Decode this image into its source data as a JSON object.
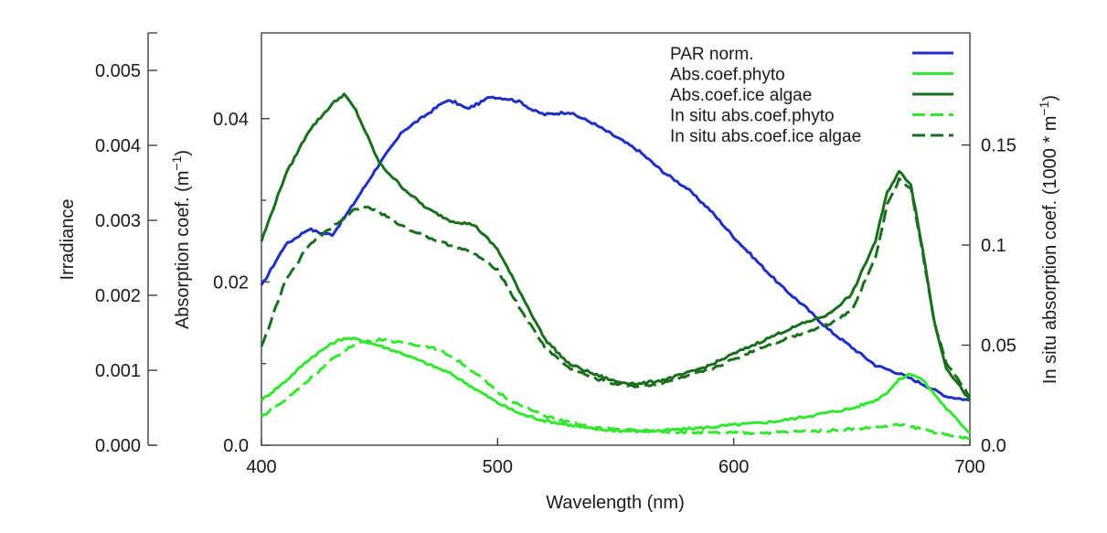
{
  "chart_data": {
    "type": "line",
    "xlabel": "Wavelength (nm)",
    "x_ticks": [
      "400",
      "500",
      "600",
      "700"
    ],
    "xlim": [
      400,
      700
    ],
    "axes": {
      "irradiance": {
        "label": "Irradiance",
        "ylim": [
          0,
          0.0055
        ],
        "ticks": [
          "0.000",
          "0.001",
          "0.002",
          "0.003",
          "0.004",
          "0.005"
        ]
      },
      "absorption": {
        "label_main": "Absorption coef. (m",
        "label_sup": "−1",
        "label_end": ")",
        "ylim": [
          0,
          0.0505
        ],
        "ticks": [
          "0.0",
          "0.02",
          "0.04"
        ]
      },
      "in_situ": {
        "label_main": "In situ absorption coef. (1000 * m",
        "label_sup": "−1",
        "label_end": ")",
        "ylim": [
          0,
          0.206
        ],
        "ticks": [
          "0.0",
          "0.05",
          "0.1",
          "0.15"
        ]
      }
    },
    "grid": false,
    "legend_position": "top-right",
    "series": [
      {
        "name": "PAR norm.",
        "axis": "absorption",
        "color": "#1f2fbf",
        "dash": false,
        "x": [
          400,
          410,
          420,
          425,
          430,
          435,
          440,
          450,
          460,
          470,
          478,
          482,
          487,
          493,
          497,
          505,
          510,
          515,
          520,
          530,
          540,
          550,
          560,
          570,
          580,
          590,
          600,
          610,
          620,
          630,
          640,
          650,
          660,
          670,
          680,
          690,
          700
        ],
        "y": [
          0.0195,
          0.0245,
          0.0265,
          0.026,
          0.0258,
          0.0278,
          0.03,
          0.0345,
          0.0385,
          0.0405,
          0.0422,
          0.042,
          0.0412,
          0.042,
          0.0427,
          0.0424,
          0.042,
          0.041,
          0.0405,
          0.0408,
          0.0395,
          0.0378,
          0.036,
          0.0335,
          0.0315,
          0.0288,
          0.0255,
          0.0225,
          0.0195,
          0.017,
          0.0142,
          0.012,
          0.0098,
          0.0088,
          0.0075,
          0.006,
          0.0055
        ]
      },
      {
        "name": "Abs.coef.phyto",
        "axis": "absorption",
        "color": "#33e62f",
        "dash": false,
        "x": [
          400,
          410,
          420,
          430,
          435,
          440,
          450,
          460,
          470,
          480,
          490,
          500,
          510,
          520,
          530,
          540,
          550,
          560,
          570,
          580,
          590,
          600,
          610,
          620,
          630,
          640,
          650,
          660,
          665,
          670,
          675,
          680,
          690,
          700
        ],
        "y": [
          0.0055,
          0.0078,
          0.0105,
          0.0125,
          0.0131,
          0.013,
          0.0122,
          0.0112,
          0.01,
          0.0088,
          0.007,
          0.0052,
          0.0038,
          0.003,
          0.0025,
          0.002,
          0.0018,
          0.0017,
          0.0018,
          0.002,
          0.0022,
          0.0025,
          0.0027,
          0.003,
          0.0035,
          0.004,
          0.0045,
          0.0055,
          0.0065,
          0.008,
          0.0088,
          0.008,
          0.0045,
          0.0015
        ]
      },
      {
        "name": "Abs.coef.ice algae",
        "axis": "absorption",
        "color": "#1a6e1e",
        "dash": false,
        "x": [
          400,
          410,
          420,
          430,
          435,
          440,
          450,
          460,
          470,
          480,
          490,
          500,
          510,
          520,
          530,
          540,
          550,
          560,
          570,
          580,
          590,
          600,
          610,
          620,
          630,
          640,
          650,
          660,
          665,
          670,
          675,
          680,
          685,
          690,
          700
        ],
        "y": [
          0.025,
          0.033,
          0.0385,
          0.0418,
          0.043,
          0.041,
          0.0345,
          0.0315,
          0.029,
          0.0275,
          0.027,
          0.024,
          0.0185,
          0.013,
          0.01,
          0.0088,
          0.0078,
          0.0075,
          0.008,
          0.0088,
          0.0098,
          0.0112,
          0.0125,
          0.0138,
          0.015,
          0.016,
          0.0185,
          0.025,
          0.031,
          0.0335,
          0.032,
          0.024,
          0.015,
          0.0095,
          0.0055
        ]
      },
      {
        "name": "In situ abs.coef.phyto",
        "axis": "absorption",
        "color": "#33e62f",
        "dash": true,
        "x": [
          400,
          410,
          420,
          430,
          440,
          450,
          460,
          470,
          480,
          490,
          500,
          510,
          520,
          530,
          540,
          550,
          560,
          570,
          580,
          590,
          600,
          610,
          620,
          630,
          640,
          650,
          660,
          670,
          680,
          690,
          700
        ],
        "y": [
          0.0035,
          0.0055,
          0.008,
          0.0105,
          0.0125,
          0.013,
          0.0125,
          0.0122,
          0.011,
          0.009,
          0.0065,
          0.0048,
          0.0036,
          0.0028,
          0.0022,
          0.002,
          0.0018,
          0.0017,
          0.0016,
          0.0015,
          0.0015,
          0.0015,
          0.0016,
          0.0017,
          0.0018,
          0.002,
          0.0022,
          0.0025,
          0.002,
          0.0012,
          0.0008
        ]
      },
      {
        "name": "In situ abs.coef.ice algae",
        "axis": "absorption",
        "color": "#1a6e1e",
        "dash": true,
        "x": [
          400,
          410,
          420,
          430,
          440,
          445,
          450,
          460,
          470,
          480,
          490,
          500,
          510,
          520,
          530,
          540,
          550,
          560,
          570,
          580,
          590,
          600,
          610,
          620,
          630,
          640,
          650,
          660,
          665,
          670,
          675,
          680,
          685,
          690,
          700
        ],
        "y": [
          0.012,
          0.02,
          0.0245,
          0.0268,
          0.029,
          0.0292,
          0.0285,
          0.0268,
          0.0255,
          0.0245,
          0.0235,
          0.0215,
          0.0165,
          0.012,
          0.0095,
          0.0083,
          0.0075,
          0.0072,
          0.0076,
          0.0084,
          0.0093,
          0.0105,
          0.0118,
          0.0128,
          0.0138,
          0.0148,
          0.0165,
          0.023,
          0.0295,
          0.0325,
          0.0315,
          0.0235,
          0.015,
          0.01,
          0.006
        ]
      }
    ]
  }
}
